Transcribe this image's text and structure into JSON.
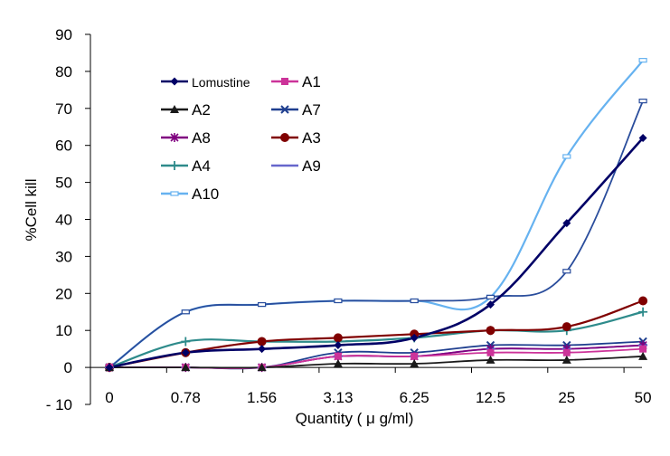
{
  "chart_data": {
    "type": "line",
    "xlabel": "Quantity ( μ g/ml)",
    "ylabel": "%Cell kill",
    "categories": [
      "0",
      "0.78",
      "1.56",
      "3.13",
      "6.25",
      "12.5",
      "25",
      "50"
    ],
    "yticks": [
      "90",
      "80",
      "70",
      "60",
      "50",
      "40",
      "30",
      "20",
      "10",
      "0",
      "- 10"
    ],
    "ylim": [
      -10,
      90
    ],
    "grid": false,
    "legend_position": "top-left",
    "series": [
      {
        "name": "Lomustine",
        "color": "#000066",
        "marker": "diamond",
        "values": [
          0,
          4,
          5,
          6,
          8,
          17,
          39,
          62
        ]
      },
      {
        "name": "A1",
        "color": "#cc3399",
        "marker": "square",
        "values": [
          0,
          0,
          0,
          3,
          3,
          4,
          4,
          5
        ]
      },
      {
        "name": "A2",
        "color": "#1a1a1a",
        "marker": "triangle",
        "values": [
          0,
          0,
          0,
          1,
          1,
          2,
          2,
          3
        ]
      },
      {
        "name": "A7",
        "color": "#1f3f8f",
        "marker": "x",
        "values": [
          0,
          0,
          0,
          4,
          4,
          6,
          6,
          7
        ]
      },
      {
        "name": "A8",
        "color": "#800080",
        "marker": "star",
        "values": [
          0,
          0,
          0,
          3,
          3,
          5,
          5,
          6
        ]
      },
      {
        "name": "A3",
        "color": "#800000",
        "marker": "circle",
        "values": [
          0,
          4,
          7,
          8,
          9,
          10,
          11,
          18
        ]
      },
      {
        "name": "A4",
        "color": "#2e8b8b",
        "marker": "plus",
        "values": [
          0,
          7,
          7,
          7,
          8,
          10,
          10,
          15
        ]
      },
      {
        "name": "A9",
        "color": "#6666cc",
        "marker": "dash",
        "values": [
          0,
          0,
          0,
          3,
          3,
          5,
          5,
          6
        ]
      },
      {
        "name": "A10",
        "color": "#66b2f0",
        "marker": "bar",
        "values": [
          0,
          15,
          17,
          18,
          18,
          19,
          57,
          83
        ]
      },
      {
        "name": "",
        "color": "#2a4d9c",
        "marker": "bar",
        "values": [
          0,
          15,
          17,
          18,
          18,
          19,
          26,
          72
        ]
      }
    ]
  }
}
